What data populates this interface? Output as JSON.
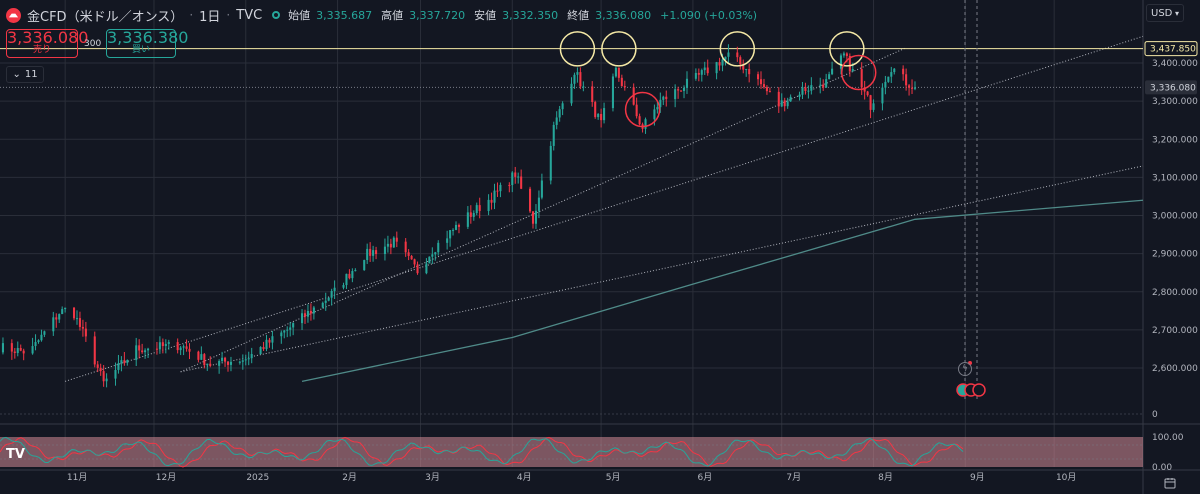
{
  "header": {
    "symbol": "金CFD（米ドル／オンス）",
    "interval": "1日",
    "source": "TVC",
    "open_label": "始値",
    "open": "3,335.687",
    "high_label": "高値",
    "high": "3,337.720",
    "low_label": "安値",
    "low": "3,332.350",
    "close_label": "終値",
    "close": "3,336.080",
    "change": "+1.090 (+0.03%)"
  },
  "trade": {
    "sell_price": "3,336.080",
    "sell_label": "売り",
    "spread": "300",
    "buy_price": "3,336.380",
    "buy_label": "買い"
  },
  "collapse_count": "11",
  "currency": "USD",
  "colors": {
    "up": "#26a69a",
    "down": "#f23645",
    "bg": "#131722",
    "grid": "#2a2e39",
    "text": "#b2b5be",
    "hline": "#f5e9a6",
    "osc_band": "#d48a96"
  },
  "chart_data": {
    "type": "candlestick",
    "y_axis": {
      "ticks": [
        2600,
        2700,
        2800,
        2900,
        3000,
        3100,
        3200,
        3300,
        3400
      ],
      "tick_labels": [
        "2,600.000",
        "2,700.000",
        "2,800.000",
        "2,900.000",
        "3,000.000",
        "3,100.000",
        "3,200.000",
        "3,300.000",
        "3,400.000"
      ],
      "range": [
        2520,
        3470
      ]
    },
    "x_axis": {
      "labels": [
        "11月",
        "12月",
        "2025",
        "2月",
        "3月",
        "4月",
        "5月",
        "6月",
        "7月",
        "8月",
        "9月",
        "10月"
      ],
      "dates": [
        "2024-11-01",
        "2024-12-01",
        "2025-01-01",
        "2025-02-01",
        "2025-03-01",
        "2025-04-01",
        "2025-05-01",
        "2025-06-01",
        "2025-07-01",
        "2025-08-01",
        "2025-09-01",
        "2025-10-01"
      ],
      "range": [
        "2024-10-10",
        "2025-10-31"
      ]
    },
    "price_labels": [
      {
        "value": 3437.85,
        "text": "3,437.850",
        "style": "horizontal-line"
      },
      {
        "value": 3336.08,
        "text": "3,336.080",
        "style": "last-price"
      }
    ],
    "horizontal_line": 3437.85,
    "last_price": 3336.08,
    "series": [
      {
        "kind": "candlestick",
        "anchors": [
          [
            "2024-10-10",
            2655
          ],
          [
            "2024-10-20",
            2640
          ],
          [
            "2024-10-30",
            2745
          ],
          [
            "2024-11-03",
            2760
          ],
          [
            "2024-11-10",
            2640
          ],
          [
            "2024-11-14",
            2560
          ],
          [
            "2024-11-25",
            2650
          ],
          [
            "2024-12-10",
            2660
          ],
          [
            "2024-12-20",
            2610
          ],
          [
            "2025-01-01",
            2625
          ],
          [
            "2025-01-15",
            2700
          ],
          [
            "2025-01-31",
            2800
          ],
          [
            "2025-02-10",
            2895
          ],
          [
            "2025-02-20",
            2930
          ],
          [
            "2025-02-28",
            2855
          ],
          [
            "2025-03-05",
            2910
          ],
          [
            "2025-03-15",
            2985
          ],
          [
            "2025-03-27",
            3060
          ],
          [
            "2025-04-02",
            3110
          ],
          [
            "2025-04-08",
            2985
          ],
          [
            "2025-04-15",
            3230
          ],
          [
            "2025-04-22",
            3380
          ],
          [
            "2025-05-01",
            3240
          ],
          [
            "2025-05-06",
            3380
          ],
          [
            "2025-05-15",
            3230
          ],
          [
            "2025-05-21",
            3300
          ],
          [
            "2025-06-02",
            3360
          ],
          [
            "2025-06-13",
            3420
          ],
          [
            "2025-06-20",
            3380
          ],
          [
            "2025-06-30",
            3290
          ],
          [
            "2025-07-08",
            3330
          ],
          [
            "2025-07-16",
            3350
          ],
          [
            "2025-07-22",
            3420
          ],
          [
            "2025-07-31",
            3290
          ],
          [
            "2025-08-07",
            3390
          ],
          [
            "2025-08-12",
            3350
          ],
          [
            "2025-08-15",
            3336
          ]
        ]
      },
      {
        "kind": "moving-average",
        "anchors": [
          [
            "2025-01-20",
            2565
          ],
          [
            "2025-04-01",
            2680
          ],
          [
            "2025-06-01",
            2820
          ],
          [
            "2025-08-15",
            2990
          ],
          [
            "2025-10-31",
            3040
          ]
        ]
      },
      {
        "kind": "trend-line",
        "style": "dotted",
        "points": [
          [
            "2024-11-01",
            2565
          ],
          [
            "2025-10-31",
            3470
          ]
        ]
      },
      {
        "kind": "trend-line",
        "style": "dotted",
        "points": [
          [
            "2024-12-10",
            2590
          ],
          [
            "2025-08-12",
            3440
          ]
        ]
      },
      {
        "kind": "trend-line",
        "style": "dotted",
        "points": [
          [
            "2024-12-10",
            2590
          ],
          [
            "2025-10-31",
            3130
          ]
        ]
      }
    ],
    "annotations": [
      {
        "kind": "circle",
        "color": "#f5e9a6",
        "at": [
          "2025-04-23",
          3437
        ]
      },
      {
        "kind": "circle",
        "color": "#f5e9a6",
        "at": [
          "2025-05-07",
          3437
        ]
      },
      {
        "kind": "circle",
        "color": "#f5e9a6",
        "at": [
          "2025-06-16",
          3437
        ]
      },
      {
        "kind": "circle",
        "color": "#f5e9a6",
        "at": [
          "2025-07-23",
          3437
        ]
      },
      {
        "kind": "circle",
        "color": "#f23645",
        "at": [
          "2025-05-15",
          3278
        ]
      },
      {
        "kind": "circle",
        "color": "#f23645",
        "at": [
          "2025-07-27",
          3375
        ]
      }
    ],
    "oscillator": {
      "ticks": [
        0,
        100
      ],
      "tick_labels": [
        "0.00",
        "100.00"
      ],
      "zero_label": "0",
      "series": [
        {
          "color": "#f23645",
          "period": 13,
          "phase": 0
        },
        {
          "color": "#26a69a",
          "period": 13,
          "phase": 0.9
        }
      ]
    }
  }
}
